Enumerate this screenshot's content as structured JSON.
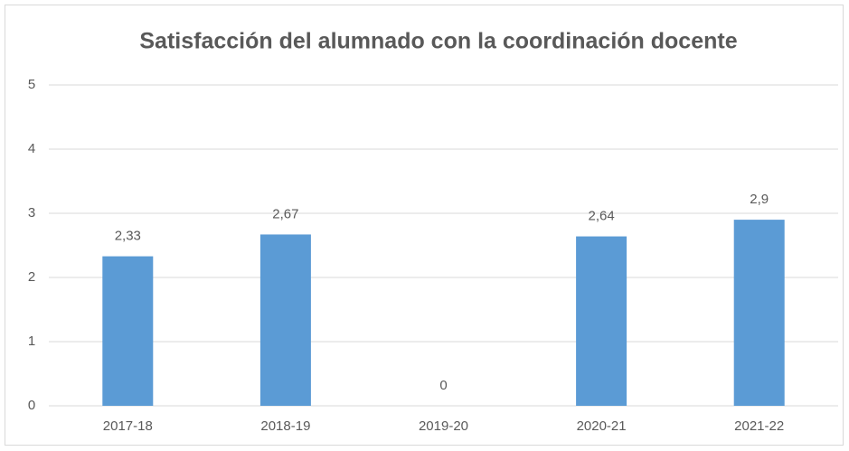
{
  "chart_data": {
    "type": "bar",
    "title": "Satisfacción del alumnado con la coordinación docente",
    "categories": [
      "2017-18",
      "2018-19",
      "2019-20",
      "2020-21",
      "2021-22"
    ],
    "values": [
      2.33,
      2.67,
      0,
      2.64,
      2.9
    ],
    "value_labels": [
      "2,33",
      "2,67",
      "0",
      "2,64",
      "2,9"
    ],
    "color": "#5b9bd5",
    "ylim": [
      0,
      5
    ],
    "yticks": [
      0,
      1,
      2,
      3,
      4,
      5
    ],
    "grid": true
  }
}
